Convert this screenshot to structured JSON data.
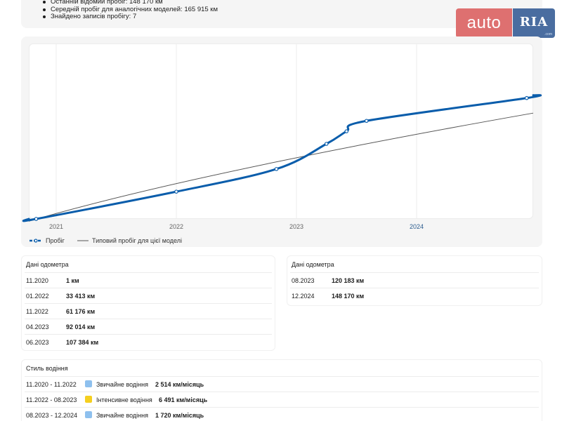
{
  "summary": {
    "items": [
      "Останній відомий пробіг: 148 170 км",
      "Середній пробіг для аналогічних моделей: 165 915 км",
      "Знайдено записів пробігу: 7"
    ]
  },
  "logo": {
    "left": "auto",
    "right": "RIA",
    "small": ".com"
  },
  "legend": {
    "series_label": "Пробіг",
    "typical_label": "Типовий пробіг для цієї моделі"
  },
  "chart_data": {
    "type": "line",
    "x_ticks": [
      "2021",
      "2022",
      "2023",
      "2024"
    ],
    "series": [
      {
        "name": "Пробіг",
        "color": "#0a5dab",
        "points": [
          {
            "x": "11.2020",
            "y": 1
          },
          {
            "x": "01.2022",
            "y": 33413
          },
          {
            "x": "11.2022",
            "y": 61176
          },
          {
            "x": "04.2023",
            "y": 92014
          },
          {
            "x": "06.2023",
            "y": 107384
          },
          {
            "x": "08.2023",
            "y": 120183
          },
          {
            "x": "12.2024",
            "y": 148170
          }
        ]
      },
      {
        "name": "Типовий пробіг для цієї моделі",
        "color": "#555555",
        "points": [
          {
            "x": "11.2020",
            "y": 0
          },
          {
            "x": "12.2024",
            "y": 128000
          }
        ]
      }
    ],
    "grid": "vertical"
  },
  "odometer_left": {
    "title": "Дані одометра",
    "rows": [
      {
        "date": "11.2020",
        "value": "1 км"
      },
      {
        "date": "01.2022",
        "value": "33 413 км"
      },
      {
        "date": "11.2022",
        "value": "61 176 км"
      },
      {
        "date": "04.2023",
        "value": "92 014 км"
      },
      {
        "date": "06.2023",
        "value": "107 384 км"
      }
    ]
  },
  "odometer_right": {
    "title": "Дані одометра",
    "rows": [
      {
        "date": "08.2023",
        "value": "120 183 км"
      },
      {
        "date": "12.2024",
        "value": "148 170 км"
      }
    ]
  },
  "driving_style": {
    "title": "Стиль водіння",
    "rows": [
      {
        "period": "11.2020 - 11.2022",
        "style": "Звичайне водіння",
        "color": "#8ec0ee",
        "rate": "2 514 км/місяць"
      },
      {
        "period": "11.2022 - 08.2023",
        "style": "Інтенсивне водіння",
        "color": "#f5cf1f",
        "rate": "6 491 км/місяць"
      },
      {
        "period": "08.2023 - 12.2024",
        "style": "Звичайне водіння",
        "color": "#8ec0ee",
        "rate": "1 720 км/місяць"
      }
    ]
  }
}
